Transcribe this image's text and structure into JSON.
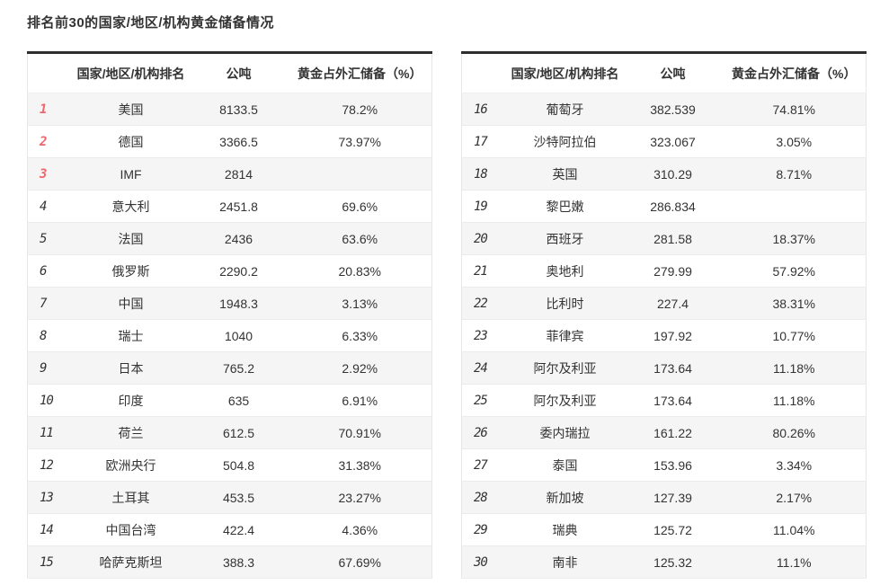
{
  "title": "排名前30的国家/地区/机构黄金储备情况",
  "colors": {
    "top_rank_red": "#f0656b",
    "rank_gray": "#6e6e6e",
    "stripe_gray": "#f5f5f5",
    "table_top_border": "#2e2e2e",
    "text": "#333333"
  },
  "tables": [
    {
      "columns": {
        "rank": "",
        "name": "国家/地区/机构排名",
        "tons": "公吨",
        "pct": "黄金占外汇储备（%）"
      },
      "rows": [
        {
          "rank": "1",
          "name": "美国",
          "tons": "8133.5",
          "pct": "78.2%"
        },
        {
          "rank": "2",
          "name": "德国",
          "tons": "3366.5",
          "pct": "73.97%"
        },
        {
          "rank": "3",
          "name": "IMF",
          "tons": "2814",
          "pct": ""
        },
        {
          "rank": "4",
          "name": "意大利",
          "tons": "2451.8",
          "pct": "69.6%"
        },
        {
          "rank": "5",
          "name": "法国",
          "tons": "2436",
          "pct": "63.6%"
        },
        {
          "rank": "6",
          "name": "俄罗斯",
          "tons": "2290.2",
          "pct": "20.83%"
        },
        {
          "rank": "7",
          "name": "中国",
          "tons": "1948.3",
          "pct": "3.13%"
        },
        {
          "rank": "8",
          "name": "瑞士",
          "tons": "1040",
          "pct": "6.33%"
        },
        {
          "rank": "9",
          "name": "日本",
          "tons": "765.2",
          "pct": "2.92%"
        },
        {
          "rank": "10",
          "name": "印度",
          "tons": "635",
          "pct": "6.91%"
        },
        {
          "rank": "11",
          "name": "荷兰",
          "tons": "612.5",
          "pct": "70.91%"
        },
        {
          "rank": "12",
          "name": "欧洲央行",
          "tons": "504.8",
          "pct": "31.38%"
        },
        {
          "rank": "13",
          "name": "土耳其",
          "tons": "453.5",
          "pct": "23.27%"
        },
        {
          "rank": "14",
          "name": "中国台湾",
          "tons": "422.4",
          "pct": "4.36%"
        },
        {
          "rank": "15",
          "name": "哈萨克斯坦",
          "tons": "388.3",
          "pct": "67.69%"
        }
      ]
    },
    {
      "columns": {
        "rank": "",
        "name": "国家/地区/机构排名",
        "tons": "公吨",
        "pct": "黄金占外汇储备（%）"
      },
      "rows": [
        {
          "rank": "16",
          "name": "葡萄牙",
          "tons": "382.539",
          "pct": "74.81%"
        },
        {
          "rank": "17",
          "name": "沙特阿拉伯",
          "tons": "323.067",
          "pct": "3.05%"
        },
        {
          "rank": "18",
          "name": "英国",
          "tons": "310.29",
          "pct": "8.71%"
        },
        {
          "rank": "19",
          "name": "黎巴嫩",
          "tons": "286.834",
          "pct": ""
        },
        {
          "rank": "20",
          "name": "西班牙",
          "tons": "281.58",
          "pct": "18.37%"
        },
        {
          "rank": "21",
          "name": "奥地利",
          "tons": "279.99",
          "pct": "57.92%"
        },
        {
          "rank": "22",
          "name": "比利时",
          "tons": "227.4",
          "pct": "38.31%"
        },
        {
          "rank": "23",
          "name": "菲律宾",
          "tons": "197.92",
          "pct": "10.77%"
        },
        {
          "rank": "24",
          "name": "阿尔及利亚",
          "tons": "173.64",
          "pct": "11.18%"
        },
        {
          "rank": "25",
          "name": "阿尔及利亚",
          "tons": "173.64",
          "pct": "11.18%"
        },
        {
          "rank": "26",
          "name": "委内瑞拉",
          "tons": "161.22",
          "pct": "80.26%"
        },
        {
          "rank": "27",
          "name": "泰国",
          "tons": "153.96",
          "pct": "3.34%"
        },
        {
          "rank": "28",
          "name": "新加坡",
          "tons": "127.39",
          "pct": "2.17%"
        },
        {
          "rank": "29",
          "name": "瑞典",
          "tons": "125.72",
          "pct": "11.04%"
        },
        {
          "rank": "30",
          "name": "南非",
          "tons": "125.32",
          "pct": "11.1%"
        }
      ]
    }
  ]
}
